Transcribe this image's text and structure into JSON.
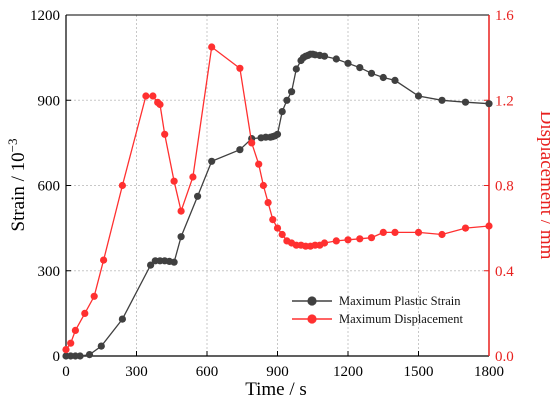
{
  "chart_data": {
    "type": "line",
    "xlabel": "Time / s",
    "ylabel_left": "Strain / 10",
    "ylabel_left_exp": "−3",
    "ylabel_right": "Displacement / mm",
    "xlim": [
      0,
      1800
    ],
    "ylim_left": [
      0,
      1200
    ],
    "ylim_right": [
      0,
      1.6
    ],
    "x_ticks": [
      "0",
      "300",
      "600",
      "900",
      "1200",
      "1500",
      "1800"
    ],
    "y_left_ticks": [
      "0",
      "300",
      "600",
      "900",
      "1200"
    ],
    "y_right_ticks": [
      "0.0",
      "0.4",
      "0.8",
      "1.2",
      "1.6"
    ],
    "grid": true,
    "legend_position": "bottom-right",
    "colors": {
      "strain": "#404040",
      "displacement": "#ff3030",
      "right_axis": "#e8211f",
      "grid": "#c8c8c8"
    },
    "series": [
      {
        "name": "Maximum Plastic Strain",
        "axis": "left",
        "x": [
          0,
          20,
          40,
          60,
          100,
          150,
          240,
          360,
          380,
          400,
          420,
          440,
          460,
          490,
          560,
          620,
          740,
          790,
          830,
          850,
          870,
          880,
          890,
          900,
          920,
          940,
          960,
          980,
          1000,
          1010,
          1020,
          1030,
          1040,
          1050,
          1060,
          1080,
          1100,
          1150,
          1200,
          1250,
          1300,
          1350,
          1400,
          1500,
          1600,
          1700,
          1800
        ],
        "y": [
          0,
          0,
          0,
          0,
          5,
          35,
          130,
          320,
          335,
          335,
          335,
          333,
          330,
          420,
          562,
          685,
          726,
          765,
          768,
          770,
          770,
          772,
          775,
          780,
          860,
          900,
          930,
          1010,
          1040,
          1050,
          1055,
          1058,
          1062,
          1062,
          1060,
          1058,
          1055,
          1045,
          1030,
          1015,
          995,
          980,
          970,
          915,
          900,
          893,
          888
        ]
      },
      {
        "name": "Maximum Displacement",
        "axis": "right",
        "x": [
          0,
          20,
          40,
          80,
          120,
          160,
          240,
          340,
          370,
          390,
          400,
          420,
          460,
          490,
          540,
          620,
          740,
          790,
          820,
          840,
          860,
          880,
          900,
          920,
          940,
          960,
          980,
          1000,
          1020,
          1040,
          1060,
          1080,
          1100,
          1150,
          1200,
          1250,
          1300,
          1350,
          1400,
          1500,
          1600,
          1700,
          1800
        ],
        "y": [
          0.03,
          0.06,
          0.12,
          0.2,
          0.28,
          0.45,
          0.8,
          1.22,
          1.22,
          1.19,
          1.18,
          1.04,
          0.82,
          0.68,
          0.84,
          1.45,
          1.35,
          1.0,
          0.9,
          0.8,
          0.72,
          0.64,
          0.6,
          0.57,
          0.54,
          0.53,
          0.52,
          0.52,
          0.515,
          0.515,
          0.52,
          0.52,
          0.53,
          0.54,
          0.545,
          0.55,
          0.555,
          0.58,
          0.58,
          0.58,
          0.57,
          0.6,
          0.61
        ]
      }
    ]
  }
}
